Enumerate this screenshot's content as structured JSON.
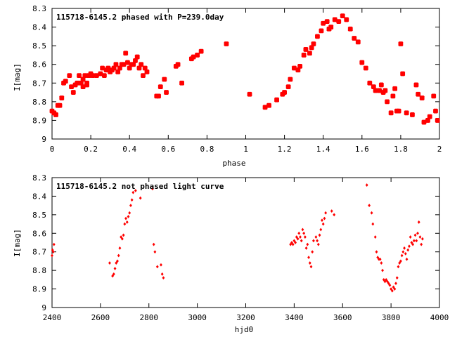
{
  "chart_data": [
    {
      "type": "scatter",
      "title": "115718-6145.2 phased with P=239.0day",
      "xlabel": "phase",
      "ylabel": "I[mag]",
      "xlim": [
        0,
        2
      ],
      "ylim": [
        8.3,
        9
      ],
      "y_inverted": true,
      "xticks": [
        "0",
        "0.2",
        "0.4",
        "0.6",
        "0.8",
        "1",
        "1.2",
        "1.4",
        "1.6",
        "1.8",
        "2"
      ],
      "yticks": [
        "8.3",
        "8.4",
        "8.5",
        "8.6",
        "8.7",
        "8.8",
        "8.9",
        "9"
      ],
      "grid": false,
      "marker_color": "#ff0000",
      "series": [
        {
          "x": [
            0.0,
            0.01,
            0.02,
            0.03,
            0.04,
            0.05,
            0.06,
            0.07,
            0.09,
            0.1,
            0.11,
            0.12,
            0.13,
            0.14,
            0.15,
            0.16,
            0.16,
            0.17,
            0.18,
            0.18,
            0.19,
            0.2,
            0.21,
            0.23,
            0.25,
            0.26,
            0.27,
            0.28,
            0.29,
            0.3,
            0.31,
            0.32,
            0.33,
            0.34,
            0.35,
            0.36,
            0.37,
            0.38,
            0.39,
            0.4,
            0.41,
            0.42,
            0.43,
            0.44,
            0.45,
            0.46,
            0.47,
            0.48,
            0.49,
            0.54,
            0.55,
            0.56,
            0.58,
            0.59,
            0.64,
            0.65,
            0.67,
            0.72,
            0.73,
            0.75,
            0.77,
            0.9,
            1.02,
            1.1,
            1.12,
            1.16,
            1.19,
            1.2,
            1.22,
            1.23,
            1.25,
            1.27,
            1.28,
            1.3,
            1.31,
            1.33,
            1.34,
            1.35,
            1.37,
            1.39,
            1.4,
            1.42,
            1.43,
            1.44,
            1.46,
            1.48,
            1.5,
            1.52,
            1.54,
            1.56,
            1.58,
            1.6,
            1.62,
            1.64,
            1.66,
            1.67,
            1.69,
            1.7,
            1.71,
            1.72,
            1.73,
            1.75,
            1.76,
            1.77,
            1.78,
            1.79,
            1.8,
            1.81,
            1.83,
            1.86,
            1.88,
            1.89,
            1.91,
            1.92,
            1.94,
            1.95,
            1.97,
            1.98,
            1.99
          ],
          "y": [
            8.85,
            8.86,
            8.87,
            8.82,
            8.82,
            8.78,
            8.7,
            8.69,
            8.66,
            8.72,
            8.75,
            8.71,
            8.7,
            8.66,
            8.7,
            8.72,
            8.68,
            8.66,
            8.7,
            8.71,
            8.66,
            8.65,
            8.66,
            8.66,
            8.65,
            8.62,
            8.66,
            8.63,
            8.62,
            8.64,
            8.63,
            8.62,
            8.6,
            8.64,
            8.62,
            8.6,
            8.6,
            8.54,
            8.59,
            8.62,
            8.6,
            8.6,
            8.58,
            8.56,
            8.62,
            8.6,
            8.66,
            8.62,
            8.64,
            8.77,
            8.77,
            8.72,
            8.68,
            8.75,
            8.61,
            8.6,
            8.7,
            8.57,
            8.56,
            8.55,
            8.53,
            8.49,
            8.76,
            8.83,
            8.82,
            8.79,
            8.76,
            8.75,
            8.72,
            8.68,
            8.62,
            8.63,
            8.61,
            8.55,
            8.52,
            8.54,
            8.51,
            8.49,
            8.45,
            8.42,
            8.38,
            8.37,
            8.41,
            8.4,
            8.36,
            8.37,
            8.34,
            8.36,
            8.41,
            8.46,
            8.48,
            8.59,
            8.62,
            8.7,
            8.72,
            8.74,
            8.74,
            8.71,
            8.75,
            8.74,
            8.8,
            8.86,
            8.77,
            8.73,
            8.85,
            8.85,
            8.49,
            8.65,
            8.86,
            8.87,
            8.71,
            8.76,
            8.78,
            8.91,
            8.9,
            8.88,
            8.77,
            8.85,
            8.9
          ]
        }
      ]
    },
    {
      "type": "scatter",
      "title": "115718-6145.2 not phased light curve",
      "xlabel": "hjd0",
      "ylabel": "I[mag]",
      "xlim": [
        2400,
        4000
      ],
      "ylim": [
        8.3,
        9
      ],
      "y_inverted": true,
      "xticks": [
        "2400",
        "2600",
        "2800",
        "3000",
        "3200",
        "3400",
        "3600",
        "3800",
        "4000"
      ],
      "yticks": [
        "8.3",
        "8.4",
        "8.5",
        "8.6",
        "8.7",
        "8.8",
        "8.9",
        "9"
      ],
      "grid": false,
      "marker_color": "#ff0000",
      "series": [
        {
          "x": [
            2400,
            2402,
            2405,
            2408,
            2638,
            2650,
            2655,
            2660,
            2665,
            2670,
            2675,
            2680,
            2685,
            2690,
            2695,
            2700,
            2705,
            2710,
            2715,
            2720,
            2725,
            2730,
            2735,
            2745,
            2765,
            2815,
            2820,
            2825,
            2835,
            2850,
            2855,
            2860,
            3385,
            3390,
            3395,
            3400,
            3405,
            3410,
            3415,
            3420,
            3425,
            3430,
            3435,
            3440,
            3445,
            3450,
            3455,
            3460,
            3465,
            3470,
            3475,
            3480,
            3490,
            3495,
            3500,
            3505,
            3510,
            3515,
            3520,
            3525,
            3530,
            3555,
            3565,
            3700,
            3710,
            3720,
            3725,
            3735,
            3740,
            3745,
            3750,
            3755,
            3760,
            3765,
            3770,
            3775,
            3780,
            3785,
            3790,
            3795,
            3800,
            3805,
            3810,
            3815,
            3820,
            3825,
            3830,
            3835,
            3840,
            3845,
            3850,
            3855,
            3860,
            3865,
            3870,
            3875,
            3880,
            3885,
            3890,
            3895,
            3900,
            3905,
            3910,
            3915,
            3920,
            3925,
            3930
          ],
          "y": [
            8.72,
            8.69,
            8.7,
            8.66,
            8.76,
            8.83,
            8.82,
            8.79,
            8.76,
            8.75,
            8.72,
            8.68,
            8.62,
            8.63,
            8.61,
            8.55,
            8.52,
            8.54,
            8.51,
            8.49,
            8.45,
            8.42,
            8.38,
            8.37,
            8.41,
            8.36,
            8.66,
            8.7,
            8.78,
            8.77,
            8.82,
            8.84,
            8.66,
            8.65,
            8.66,
            8.64,
            8.65,
            8.62,
            8.63,
            8.6,
            8.62,
            8.64,
            8.58,
            8.6,
            8.62,
            8.68,
            8.66,
            8.73,
            8.76,
            8.78,
            8.7,
            8.64,
            8.62,
            8.64,
            8.66,
            8.61,
            8.58,
            8.53,
            8.55,
            8.52,
            8.49,
            8.48,
            8.5,
            8.34,
            8.45,
            8.49,
            8.55,
            8.62,
            8.7,
            8.73,
            8.74,
            8.74,
            8.76,
            8.8,
            8.85,
            8.86,
            8.85,
            8.86,
            8.87,
            8.88,
            8.9,
            8.91,
            8.89,
            8.9,
            8.87,
            8.84,
            8.78,
            8.76,
            8.75,
            8.72,
            8.7,
            8.68,
            8.71,
            8.74,
            8.69,
            8.67,
            8.62,
            8.65,
            8.66,
            8.64,
            8.61,
            8.64,
            8.6,
            8.54,
            8.62,
            8.66,
            8.63
          ]
        }
      ]
    }
  ]
}
